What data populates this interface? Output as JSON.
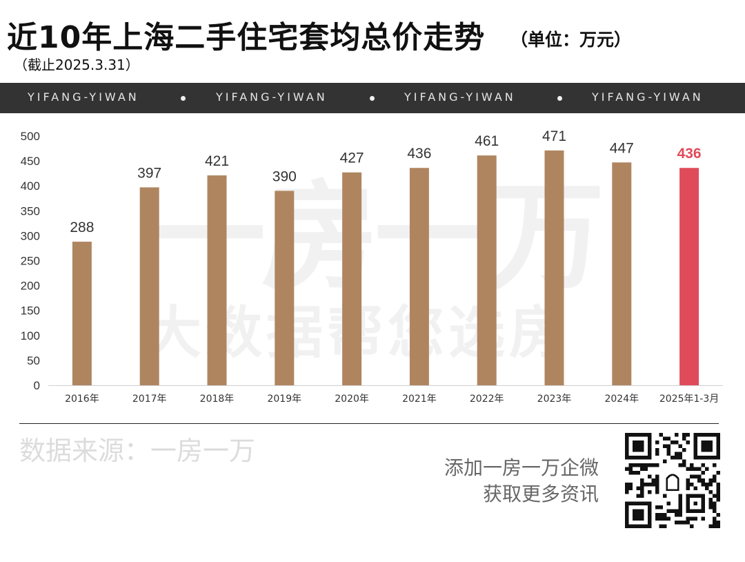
{
  "title": "近10年上海二手住宅套均总价走势",
  "unit": "（单位：万元）",
  "date_note": "（截止2025.3.31）",
  "banner": {
    "items": [
      "YIFANG-YIWAN",
      "YIFANG-YIWAN",
      "YIFANG-YIWAN",
      "YIFANG-YIWAN"
    ]
  },
  "watermark": {
    "brand": "一房一万",
    "slogan": "大数据帮您选房"
  },
  "chart_data": {
    "type": "bar",
    "title": "近10年上海二手住宅套均总价走势",
    "xlabel": "",
    "ylabel": "",
    "ylim": [
      0,
      500
    ],
    "yticks": [
      0,
      50,
      100,
      150,
      200,
      250,
      300,
      350,
      400,
      450,
      500
    ],
    "categories": [
      "2016年",
      "2017年",
      "2018年",
      "2019年",
      "2020年",
      "2021年",
      "2022年",
      "2023年",
      "2024年",
      "2025年1-3月"
    ],
    "values": [
      288,
      397,
      421,
      390,
      427,
      436,
      461,
      471,
      447,
      436
    ],
    "colors": [
      "#af8560",
      "#af8560",
      "#af8560",
      "#af8560",
      "#af8560",
      "#af8560",
      "#af8560",
      "#af8560",
      "#af8560",
      "#e04b5a"
    ],
    "label_colors": [
      "#333333",
      "#333333",
      "#333333",
      "#333333",
      "#333333",
      "#333333",
      "#333333",
      "#333333",
      "#333333",
      "#e04b5a"
    ],
    "grid": false,
    "data_labels": true
  },
  "footer": {
    "source": "数据来源：一房一万",
    "promo_line1": "添加一房一万企微",
    "promo_line2": "获取更多资讯",
    "qr_icon": "qr-code-icon"
  },
  "colors": {
    "bar": "#af8560",
    "highlight": "#e04b5a",
    "banner_bg": "#333333",
    "banner_text": "#e6e6e6"
  }
}
